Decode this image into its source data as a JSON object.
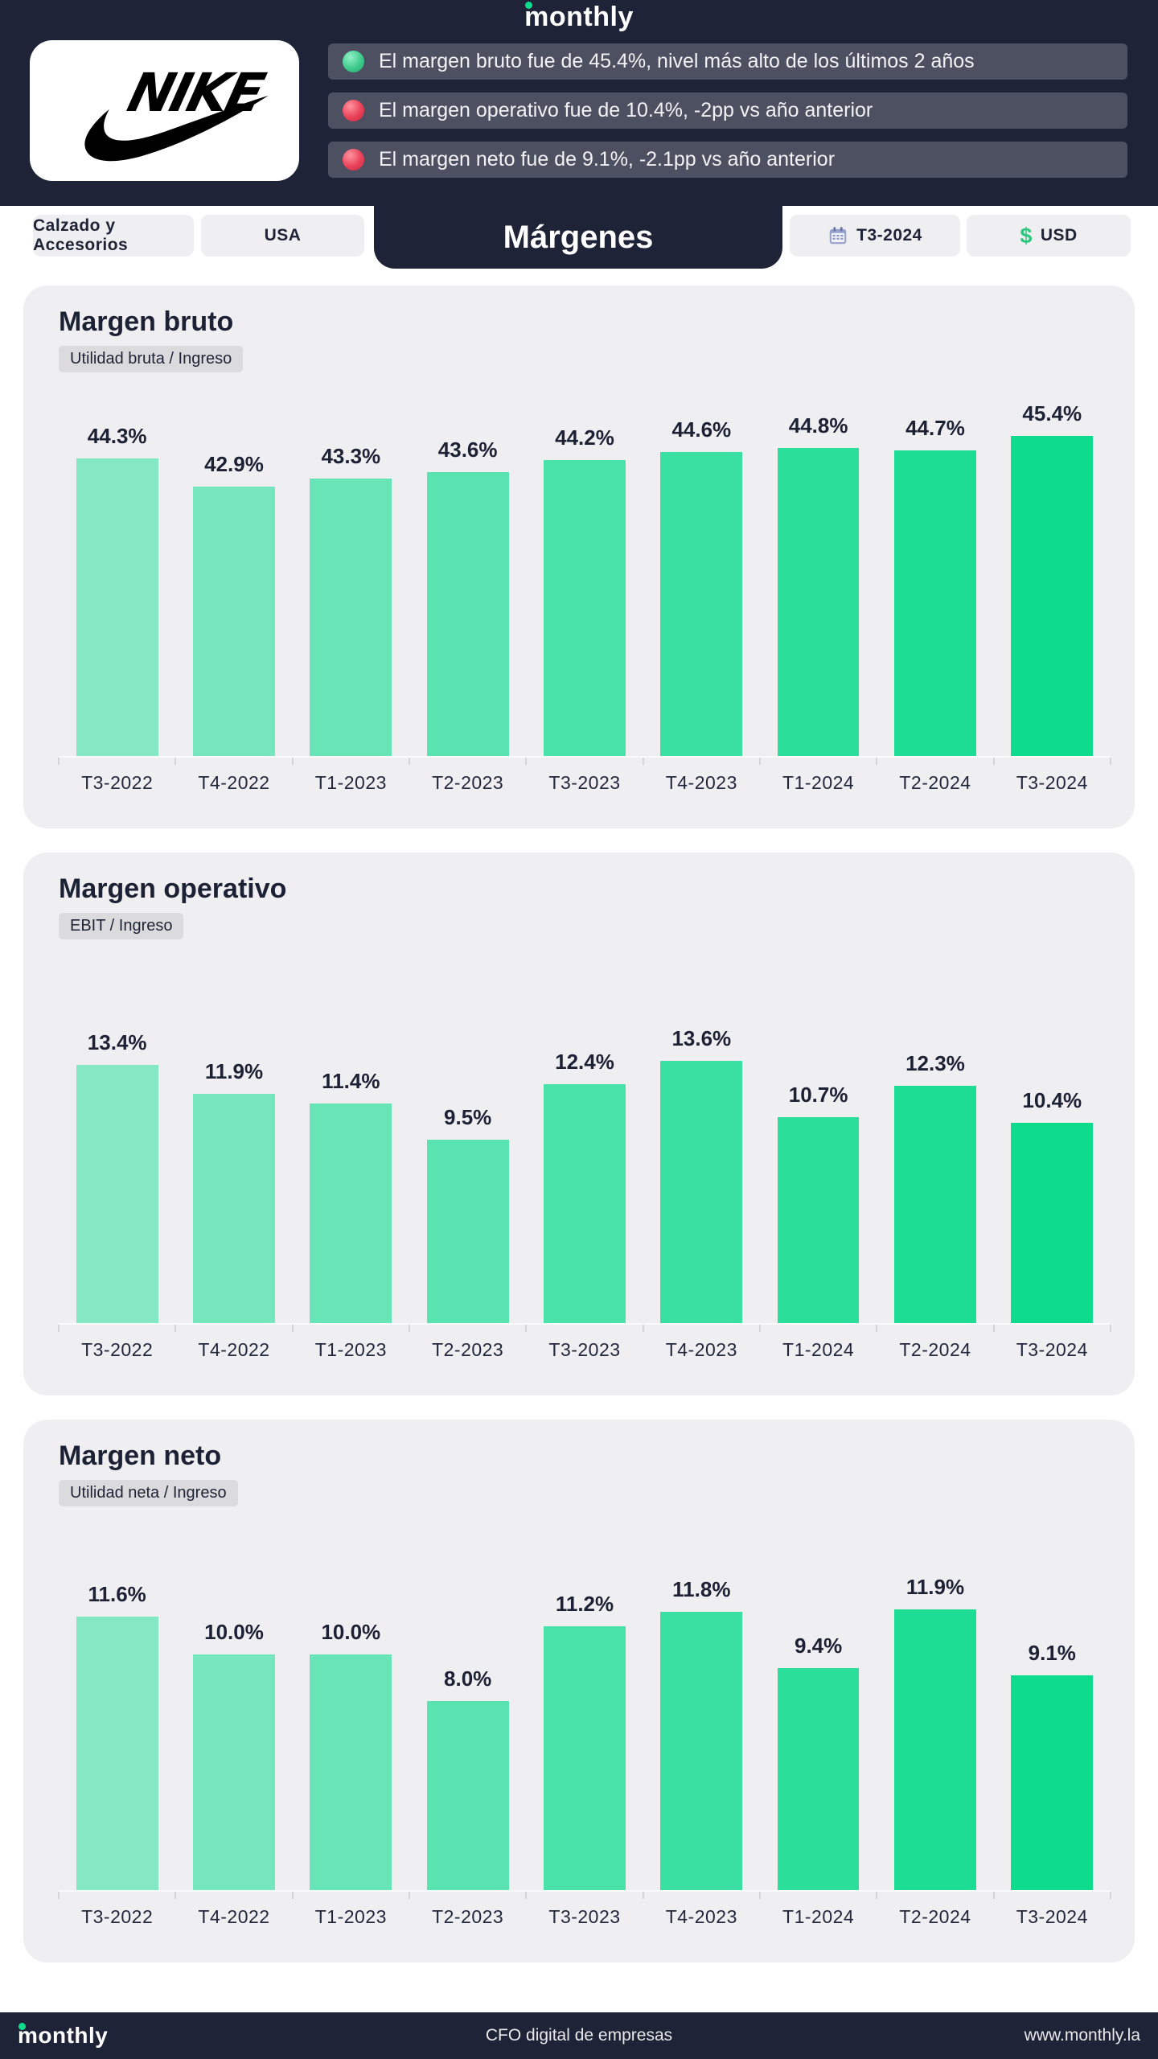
{
  "app": {
    "brand": "monthly",
    "tagline": "CFO digital de empresas",
    "website": "www.monthly.la"
  },
  "company": {
    "name": "NIKE",
    "logo": "nike-swoosh-logo"
  },
  "header": {
    "highlights": [
      {
        "icon": "green-circle",
        "text": "El margen bruto fue de 45.4%, nivel más alto de los últimos 2 años"
      },
      {
        "icon": "red-circle",
        "text": "El margen operativo fue de 10.4%, -2pp vs año anterior"
      },
      {
        "icon": "red-circle",
        "text": "El margen neto fue de 9.1%, -2.1pp vs año anterior"
      }
    ]
  },
  "filters": {
    "category": "Calzado y Accesorios",
    "region": "USA",
    "active_tab": "Márgenes",
    "period": "T3-2024",
    "period_icon": "calendar-icon",
    "currency": "USD",
    "currency_icon": "dollar-icon"
  },
  "colors": {
    "dark_navy": "#1F2337",
    "page_bg": "#FFFFFF",
    "card_bg": "#EFEFF1",
    "pill_bg": "#EFEFF1",
    "badge_bg": "#DBDBDE",
    "bullet_bg": "#4C5061",
    "text_dark": "#1D2135",
    "accent_green": "#0EDC8C",
    "status_green": "#3ECB8C",
    "status_red": "#E94057",
    "axis_line": "#FAFAFB",
    "axis_tick": "#D4D4D9",
    "bar_gradient": [
      "#85E8C5",
      "#76E6BE",
      "#67E5B7",
      "#58E3B0",
      "#49E2A9",
      "#3AE0A1",
      "#2BDF9A",
      "#1CDD93",
      "#0EDC8C"
    ]
  },
  "chart_data": [
    {
      "type": "bar",
      "title": "Margen bruto",
      "formula": "Utilidad bruta / Ingreso",
      "unit": "%",
      "categories": [
        "T3-2022",
        "T4-2022",
        "T1-2023",
        "T2-2023",
        "T3-2023",
        "T4-2023",
        "T1-2024",
        "T2-2024",
        "T3-2024"
      ],
      "values": [
        44.3,
        42.9,
        43.3,
        43.6,
        44.2,
        44.6,
        44.8,
        44.7,
        45.4
      ],
      "labels": [
        "44.3%",
        "42.9%",
        "43.3%",
        "43.6%",
        "44.2%",
        "44.6%",
        "44.8%",
        "44.7%",
        "45.4%"
      ],
      "ylim": [
        29.5,
        45.4
      ],
      "grid": false,
      "value_labels": "above-bars",
      "legend": "none"
    },
    {
      "type": "bar",
      "title": "Margen operativo",
      "formula": "EBIT / Ingreso",
      "unit": "%",
      "categories": [
        "T3-2022",
        "T4-2022",
        "T1-2023",
        "T2-2023",
        "T3-2023",
        "T4-2023",
        "T1-2024",
        "T2-2024",
        "T3-2024"
      ],
      "values": [
        13.4,
        11.9,
        11.4,
        9.5,
        12.4,
        13.6,
        10.7,
        12.3,
        10.4
      ],
      "labels": [
        "13.4%",
        "11.9%",
        "11.4%",
        "9.5%",
        "12.4%",
        "13.6%",
        "10.7%",
        "12.3%",
        "10.4%"
      ],
      "ylim": [
        0,
        13.6
      ],
      "grid": false,
      "value_labels": "above-bars",
      "legend": "none"
    },
    {
      "type": "bar",
      "title": "Margen neto",
      "formula": "Utilidad neta / Ingreso",
      "unit": "%",
      "categories": [
        "T3-2022",
        "T4-2022",
        "T1-2023",
        "T2-2023",
        "T3-2023",
        "T4-2023",
        "T1-2024",
        "T2-2024",
        "T3-2024"
      ],
      "values": [
        11.6,
        10.0,
        10.0,
        8.0,
        11.2,
        11.8,
        9.4,
        11.9,
        9.1
      ],
      "labels": [
        "11.6%",
        "10.0%",
        "10.0%",
        "8.0%",
        "11.2%",
        "11.8%",
        "9.4%",
        "11.9%",
        "9.1%"
      ],
      "ylim": [
        0,
        11.9
      ],
      "grid": false,
      "value_labels": "above-bars",
      "legend": "none"
    }
  ]
}
